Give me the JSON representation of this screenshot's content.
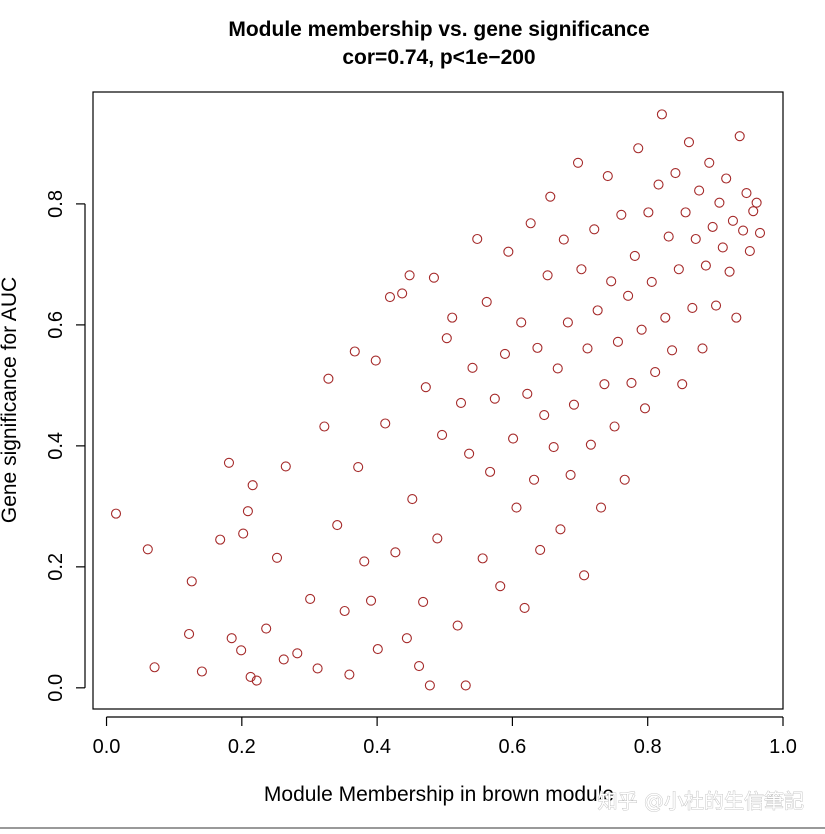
{
  "watermark": "知乎 @小杜的生信筆記",
  "chart_data": {
    "type": "scatter",
    "title": "Module membership vs. gene significance",
    "subtitle": "cor=0.74, p<1e−200",
    "xlabel": "Module Membership in brown module",
    "ylabel": "Gene significance for  AUC",
    "xlim": [
      -0.02,
      1.0
    ],
    "ylim": [
      -0.035,
      0.985
    ],
    "xticks": [
      0.0,
      0.2,
      0.4,
      0.6,
      0.8,
      1.0
    ],
    "xtick_labels": [
      "0.0",
      "0.2",
      "0.4",
      "0.6",
      "0.8",
      "1.0"
    ],
    "yticks": [
      0.0,
      0.2,
      0.4,
      0.6,
      0.8
    ],
    "ytick_labels": [
      "0.0",
      "0.2",
      "0.4",
      "0.6",
      "0.8"
    ],
    "grid": false,
    "marker": "open-circle",
    "point_color": "#a52a2a",
    "series": [
      {
        "values": [
          [
            0.014,
            0.288
          ],
          [
            0.061,
            0.229
          ],
          [
            0.071,
            0.034
          ],
          [
            0.122,
            0.089
          ],
          [
            0.126,
            0.176
          ],
          [
            0.141,
            0.027
          ],
          [
            0.168,
            0.245
          ],
          [
            0.181,
            0.372
          ],
          [
            0.185,
            0.082
          ],
          [
            0.199,
            0.062
          ],
          [
            0.202,
            0.255
          ],
          [
            0.209,
            0.292
          ],
          [
            0.213,
            0.018
          ],
          [
            0.216,
            0.335
          ],
          [
            0.222,
            0.012
          ],
          [
            0.236,
            0.098
          ],
          [
            0.252,
            0.215
          ],
          [
            0.262,
            0.047
          ],
          [
            0.265,
            0.366
          ],
          [
            0.282,
            0.057
          ],
          [
            0.301,
            0.147
          ],
          [
            0.312,
            0.032
          ],
          [
            0.322,
            0.432
          ],
          [
            0.328,
            0.511
          ],
          [
            0.341,
            0.269
          ],
          [
            0.352,
            0.127
          ],
          [
            0.359,
            0.022
          ],
          [
            0.367,
            0.556
          ],
          [
            0.372,
            0.365
          ],
          [
            0.381,
            0.209
          ],
          [
            0.391,
            0.144
          ],
          [
            0.398,
            0.541
          ],
          [
            0.401,
            0.064
          ],
          [
            0.412,
            0.437
          ],
          [
            0.419,
            0.646
          ],
          [
            0.427,
            0.224
          ],
          [
            0.437,
            0.652
          ],
          [
            0.444,
            0.082
          ],
          [
            0.448,
            0.682
          ],
          [
            0.452,
            0.312
          ],
          [
            0.462,
            0.036
          ],
          [
            0.468,
            0.142
          ],
          [
            0.472,
            0.497
          ],
          [
            0.478,
            0.004
          ],
          [
            0.484,
            0.678
          ],
          [
            0.489,
            0.247
          ],
          [
            0.496,
            0.418
          ],
          [
            0.503,
            0.578
          ],
          [
            0.511,
            0.612
          ],
          [
            0.519,
            0.103
          ],
          [
            0.524,
            0.471
          ],
          [
            0.531,
            0.004
          ],
          [
            0.536,
            0.387
          ],
          [
            0.541,
            0.529
          ],
          [
            0.548,
            0.742
          ],
          [
            0.556,
            0.214
          ],
          [
            0.562,
            0.638
          ],
          [
            0.567,
            0.357
          ],
          [
            0.574,
            0.478
          ],
          [
            0.582,
            0.168
          ],
          [
            0.589,
            0.552
          ],
          [
            0.594,
            0.721
          ],
          [
            0.601,
            0.412
          ],
          [
            0.606,
            0.298
          ],
          [
            0.613,
            0.604
          ],
          [
            0.618,
            0.132
          ],
          [
            0.622,
            0.486
          ],
          [
            0.627,
            0.768
          ],
          [
            0.632,
            0.344
          ],
          [
            0.637,
            0.562
          ],
          [
            0.641,
            0.228
          ],
          [
            0.647,
            0.451
          ],
          [
            0.652,
            0.682
          ],
          [
            0.656,
            0.812
          ],
          [
            0.661,
            0.398
          ],
          [
            0.667,
            0.528
          ],
          [
            0.671,
            0.262
          ],
          [
            0.676,
            0.741
          ],
          [
            0.682,
            0.604
          ],
          [
            0.686,
            0.352
          ],
          [
            0.691,
            0.468
          ],
          [
            0.697,
            0.868
          ],
          [
            0.702,
            0.692
          ],
          [
            0.706,
            0.186
          ],
          [
            0.711,
            0.561
          ],
          [
            0.716,
            0.402
          ],
          [
            0.721,
            0.758
          ],
          [
            0.726,
            0.624
          ],
          [
            0.731,
            0.298
          ],
          [
            0.736,
            0.502
          ],
          [
            0.741,
            0.846
          ],
          [
            0.746,
            0.672
          ],
          [
            0.751,
            0.432
          ],
          [
            0.756,
            0.572
          ],
          [
            0.761,
            0.782
          ],
          [
            0.766,
            0.344
          ],
          [
            0.771,
            0.648
          ],
          [
            0.776,
            0.504
          ],
          [
            0.781,
            0.714
          ],
          [
            0.786,
            0.892
          ],
          [
            0.791,
            0.592
          ],
          [
            0.796,
            0.462
          ],
          [
            0.801,
            0.786
          ],
          [
            0.806,
            0.671
          ],
          [
            0.811,
            0.522
          ],
          [
            0.816,
            0.832
          ],
          [
            0.821,
            0.948
          ],
          [
            0.826,
            0.612
          ],
          [
            0.831,
            0.746
          ],
          [
            0.836,
            0.558
          ],
          [
            0.841,
            0.851
          ],
          [
            0.846,
            0.692
          ],
          [
            0.851,
            0.502
          ],
          [
            0.856,
            0.786
          ],
          [
            0.861,
            0.902
          ],
          [
            0.866,
            0.628
          ],
          [
            0.871,
            0.742
          ],
          [
            0.876,
            0.822
          ],
          [
            0.881,
            0.561
          ],
          [
            0.886,
            0.698
          ],
          [
            0.891,
            0.868
          ],
          [
            0.896,
            0.762
          ],
          [
            0.901,
            0.632
          ],
          [
            0.906,
            0.802
          ],
          [
            0.911,
            0.728
          ],
          [
            0.916,
            0.842
          ],
          [
            0.921,
            0.688
          ],
          [
            0.926,
            0.772
          ],
          [
            0.931,
            0.612
          ],
          [
            0.936,
            0.912
          ],
          [
            0.941,
            0.756
          ],
          [
            0.946,
            0.818
          ],
          [
            0.951,
            0.722
          ],
          [
            0.956,
            0.788
          ],
          [
            0.961,
            0.802
          ],
          [
            0.966,
            0.752
          ]
        ]
      }
    ]
  }
}
